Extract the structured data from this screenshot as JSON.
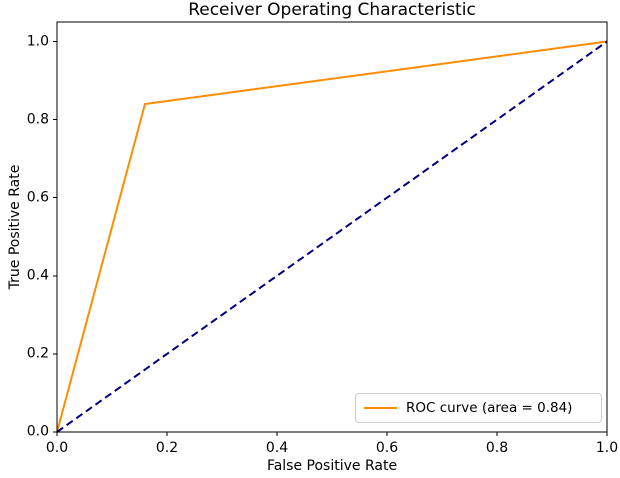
{
  "chart_data": {
    "type": "line",
    "title": "Receiver Operating Characteristic",
    "xlabel": "False Positive Rate",
    "ylabel": "True Positive Rate",
    "xlim": [
      0.0,
      1.0
    ],
    "ylim": [
      0.0,
      1.05
    ],
    "x_tick_values": [
      0.0,
      0.2,
      0.4,
      0.6,
      0.8,
      1.0
    ],
    "x_tick_labels": [
      "0.0",
      "0.2",
      "0.4",
      "0.6",
      "0.8",
      "1.0"
    ],
    "y_tick_values": [
      0.0,
      0.2,
      0.4,
      0.6,
      0.8,
      1.0
    ],
    "y_tick_labels": [
      "0.0",
      "0.2",
      "0.4",
      "0.6",
      "0.8",
      "1.0"
    ],
    "grid": false,
    "series": [
      {
        "name": "roc-curve",
        "label": "ROC curve (area = 0.84)",
        "color": "#ff8c00",
        "style": "solid",
        "line_width": 2,
        "x": [
          0.0,
          0.16,
          1.0
        ],
        "y": [
          0.0,
          0.84,
          1.0
        ]
      },
      {
        "name": "chance-diagonal",
        "label": "",
        "color": "#000080",
        "style": "dashed",
        "line_width": 2,
        "x": [
          0.0,
          1.0
        ],
        "y": [
          0.0,
          1.0
        ]
      }
    ],
    "legend": {
      "position": "lower right",
      "entries": [
        {
          "label": "ROC curve (area = 0.84)",
          "color": "#ff8c00",
          "style": "solid"
        }
      ]
    }
  },
  "colors": {
    "background": "#ffffff",
    "axis": "#000000",
    "text": "#000000",
    "legend_border": "#cccccc",
    "roc_orange": "#ff8c00",
    "chance_navy": "#000080"
  }
}
